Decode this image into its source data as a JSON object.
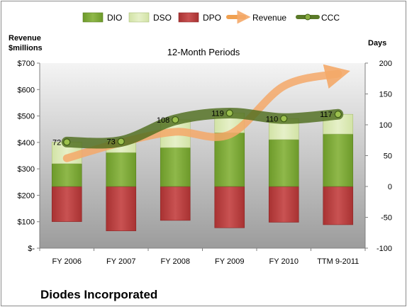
{
  "chart_data": {
    "type": "bar",
    "title": "12-Month Periods",
    "company": "Diodes Incorporated",
    "categories": [
      "FY 2006",
      "FY 2007",
      "FY 2008",
      "FY 2009",
      "FY 2010",
      "TTM 9-2011"
    ],
    "left_axis": {
      "label_line1": "Revenue",
      "label_line2": "$millions",
      "ylim": [
        0,
        700
      ],
      "ticks": [
        0,
        100,
        200,
        300,
        400,
        500,
        600,
        700
      ],
      "tick_labels": [
        "$-",
        "$100",
        "$200",
        "$300",
        "$400",
        "$500",
        "$600",
        "$700"
      ]
    },
    "right_axis": {
      "label": "Days",
      "ylim": [
        -100,
        200
      ],
      "ticks": [
        -100,
        -50,
        0,
        50,
        100,
        150,
        200
      ],
      "tick_labels": [
        "-100",
        "-50",
        "0",
        "50",
        "100",
        "150",
        "200"
      ]
    },
    "series": [
      {
        "name": "DIO",
        "type": "stacked-bar",
        "color": "#77a035",
        "values": [
          37,
          55,
          63,
          87,
          76,
          85
        ]
      },
      {
        "name": "DSO",
        "type": "stacked-bar",
        "color": "#dbe9b5",
        "values": [
          35,
          18,
          45,
          32,
          34,
          32
        ]
      },
      {
        "name": "DPO",
        "type": "negative-bar",
        "color": "#b33b3b",
        "values": [
          -57,
          -72,
          -55,
          -67,
          -58,
          -62
        ]
      },
      {
        "name": "Revenue",
        "type": "line",
        "axis": "left",
        "color": "#f0a050",
        "values": [
          340,
          400,
          440,
          430,
          613,
          660
        ]
      },
      {
        "name": "CCC",
        "type": "line",
        "axis": "right",
        "color": "#5a7a28",
        "values": [
          72,
          73,
          108,
          119,
          110,
          117
        ],
        "labels": [
          "72",
          "73",
          "108",
          "119",
          "110",
          "117"
        ]
      }
    ],
    "legend_position": "top",
    "grid": false
  }
}
